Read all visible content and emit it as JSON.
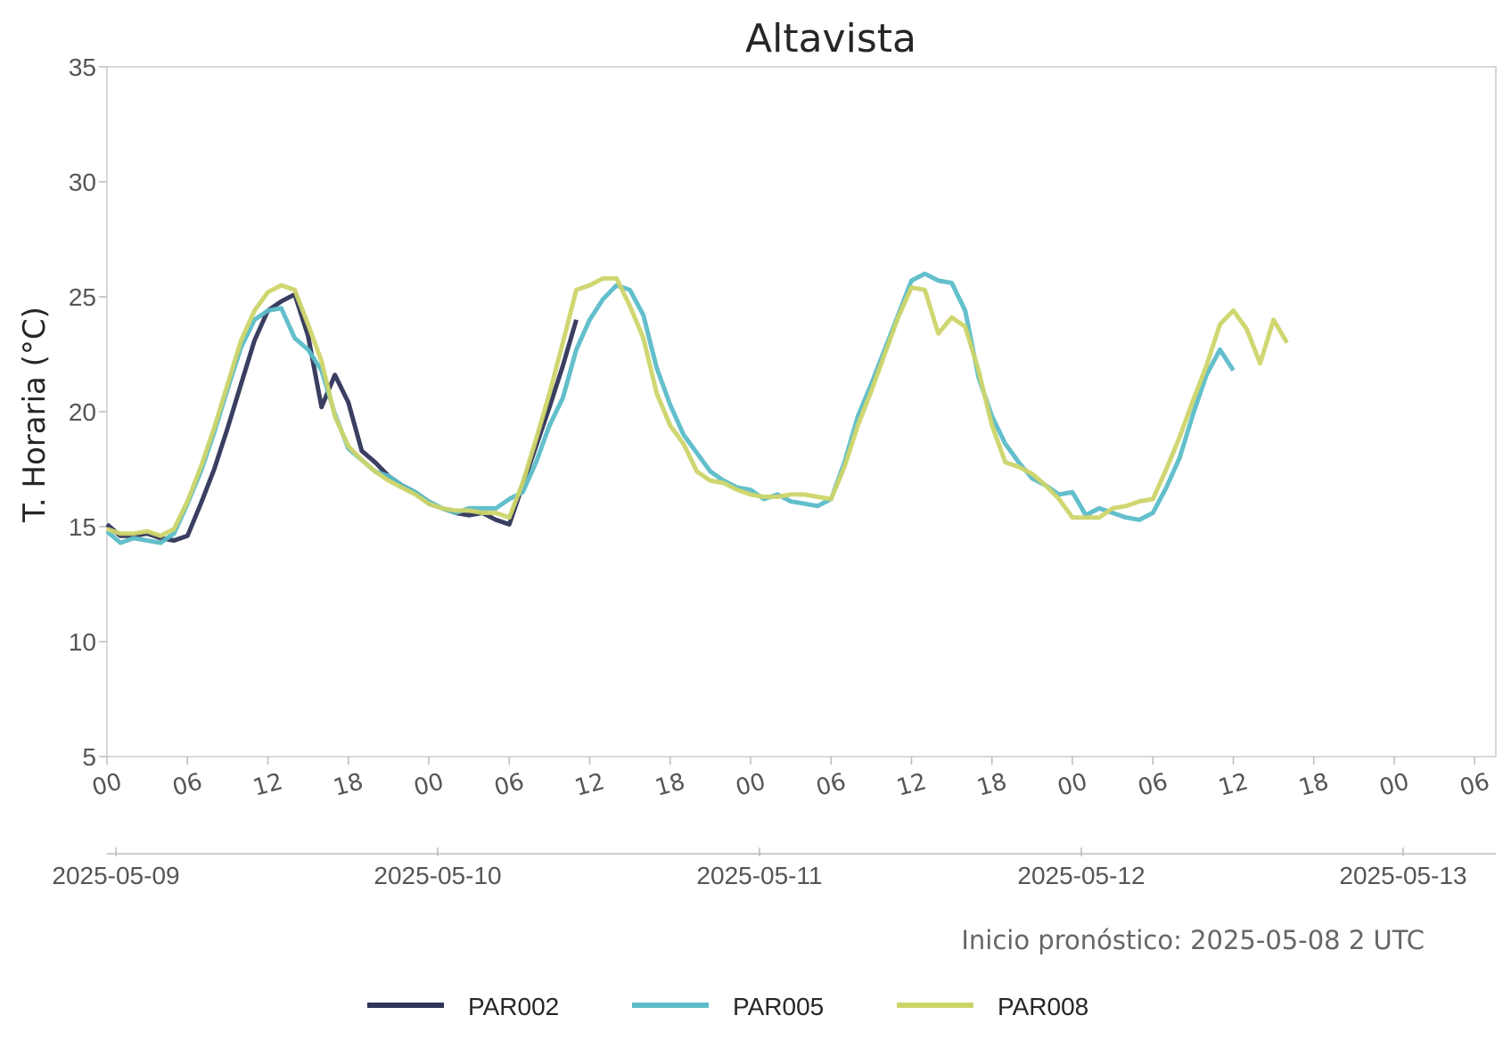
{
  "chart_data": {
    "type": "line",
    "title": "Altavista",
    "ylabel": "T. Horaria (°C)",
    "ylim": [
      5,
      35
    ],
    "yticks": [
      "5",
      "10",
      "15",
      "20",
      "25",
      "30",
      "35"
    ],
    "xlim": [
      "2025-05-09 00:00",
      "2025-05-13 06:00"
    ],
    "x_hour_ticks": [
      "00",
      "06",
      "12",
      "18",
      "00",
      "06",
      "12",
      "18",
      "00",
      "06",
      "12",
      "18",
      "00",
      "06",
      "12",
      "18",
      "00",
      "06"
    ],
    "x_date_ticks": [
      "2025-05-09",
      "2025-05-10",
      "2025-05-11",
      "2025-05-12",
      "2025-05-13"
    ],
    "grid": false,
    "legend_position": "bottom-center",
    "annotation": "Inicio pronóstico: 2025-05-08 2 UTC",
    "series": [
      {
        "name": "PAR002",
        "color": "#2f3558",
        "x": [
          "2025-05-09 00:00",
          "2025-05-09 01:00",
          "2025-05-09 02:00",
          "2025-05-09 03:00",
          "2025-05-09 04:00",
          "2025-05-09 05:00",
          "2025-05-09 06:00",
          "2025-05-09 07:00",
          "2025-05-09 08:00",
          "2025-05-09 09:00",
          "2025-05-09 10:00",
          "2025-05-09 11:00",
          "2025-05-09 12:00",
          "2025-05-09 13:00",
          "2025-05-09 14:00",
          "2025-05-09 15:00",
          "2025-05-09 16:00",
          "2025-05-09 17:00",
          "2025-05-09 18:00",
          "2025-05-09 19:00",
          "2025-05-09 20:00",
          "2025-05-09 21:00",
          "2025-05-09 22:00",
          "2025-05-09 23:00",
          "2025-05-10 00:00",
          "2025-05-10 01:00",
          "2025-05-10 02:00",
          "2025-05-10 03:00",
          "2025-05-10 04:00",
          "2025-05-10 05:00",
          "2025-05-10 06:00",
          "2025-05-10 07:00",
          "2025-05-10 08:00",
          "2025-05-10 09:00",
          "2025-05-10 10:00",
          "2025-05-10 11:00"
        ],
        "y": [
          15.1,
          14.6,
          14.6,
          14.7,
          14.5,
          14.4,
          14.6,
          16.0,
          17.5,
          19.3,
          21.2,
          23.1,
          24.4,
          24.8,
          25.1,
          23.3,
          20.2,
          21.6,
          20.4,
          18.3,
          17.8,
          17.2,
          16.8,
          16.5,
          16.0,
          15.8,
          15.6,
          15.5,
          15.6,
          15.3,
          15.1,
          16.8,
          18.5,
          20.2,
          22.0,
          24.0
        ]
      },
      {
        "name": "PAR005",
        "color": "#5bbcc8",
        "x": [
          "2025-05-09 00:00",
          "2025-05-09 01:00",
          "2025-05-09 02:00",
          "2025-05-09 03:00",
          "2025-05-09 04:00",
          "2025-05-09 05:00",
          "2025-05-09 06:00",
          "2025-05-09 07:00",
          "2025-05-09 08:00",
          "2025-05-09 09:00",
          "2025-05-09 10:00",
          "2025-05-09 11:00",
          "2025-05-09 12:00",
          "2025-05-09 13:00",
          "2025-05-09 14:00",
          "2025-05-09 15:00",
          "2025-05-09 16:00",
          "2025-05-09 17:00",
          "2025-05-09 18:00",
          "2025-05-09 19:00",
          "2025-05-09 20:00",
          "2025-05-09 21:00",
          "2025-05-09 22:00",
          "2025-05-09 23:00",
          "2025-05-10 00:00",
          "2025-05-10 01:00",
          "2025-05-10 02:00",
          "2025-05-10 03:00",
          "2025-05-10 04:00",
          "2025-05-10 05:00",
          "2025-05-10 06:00",
          "2025-05-10 07:00",
          "2025-05-10 08:00",
          "2025-05-10 09:00",
          "2025-05-10 10:00",
          "2025-05-10 11:00",
          "2025-05-10 12:00",
          "2025-05-10 13:00",
          "2025-05-10 14:00",
          "2025-05-10 15:00",
          "2025-05-10 16:00",
          "2025-05-10 17:00",
          "2025-05-10 18:00",
          "2025-05-10 19:00",
          "2025-05-10 20:00",
          "2025-05-10 21:00",
          "2025-05-10 22:00",
          "2025-05-10 23:00",
          "2025-05-11 00:00",
          "2025-05-11 01:00",
          "2025-05-11 02:00",
          "2025-05-11 03:00",
          "2025-05-11 04:00",
          "2025-05-11 05:00",
          "2025-05-11 06:00",
          "2025-05-11 07:00",
          "2025-05-11 08:00",
          "2025-05-11 09:00",
          "2025-05-11 10:00",
          "2025-05-11 11:00",
          "2025-05-11 12:00",
          "2025-05-11 13:00",
          "2025-05-11 14:00",
          "2025-05-11 15:00",
          "2025-05-11 16:00",
          "2025-05-11 17:00",
          "2025-05-11 18:00",
          "2025-05-11 19:00",
          "2025-05-11 20:00",
          "2025-05-11 21:00",
          "2025-05-11 22:00",
          "2025-05-11 23:00",
          "2025-05-12 00:00",
          "2025-05-12 01:00",
          "2025-05-12 02:00",
          "2025-05-12 03:00",
          "2025-05-12 04:00",
          "2025-05-12 05:00",
          "2025-05-12 06:00",
          "2025-05-12 07:00",
          "2025-05-12 08:00",
          "2025-05-12 09:00",
          "2025-05-12 10:00",
          "2025-05-12 11:00",
          "2025-05-12 12:00"
        ],
        "y": [
          14.8,
          14.3,
          14.5,
          14.4,
          14.3,
          14.7,
          16.0,
          17.4,
          19.1,
          21.0,
          22.8,
          24.0,
          24.4,
          24.5,
          23.2,
          22.7,
          21.8,
          19.9,
          18.4,
          17.9,
          17.4,
          17.2,
          16.8,
          16.5,
          16.1,
          15.8,
          15.6,
          15.8,
          15.8,
          15.8,
          16.2,
          16.5,
          17.8,
          19.4,
          20.6,
          22.7,
          24.0,
          24.9,
          25.5,
          25.3,
          24.2,
          21.9,
          20.3,
          19.0,
          18.2,
          17.4,
          17.0,
          16.7,
          16.6,
          16.2,
          16.4,
          16.1,
          16.0,
          15.9,
          16.2,
          17.8,
          19.8,
          21.2,
          22.7,
          24.2,
          25.7,
          26.0,
          25.7,
          25.6,
          24.4,
          21.5,
          19.8,
          18.6,
          17.8,
          17.1,
          16.8,
          16.4,
          16.5,
          15.5,
          15.8,
          15.6,
          15.4,
          15.3,
          15.6,
          16.7,
          18.0,
          19.9,
          21.6,
          22.7,
          21.8
        ]
      },
      {
        "name": "PAR008",
        "color": "#cdd56a",
        "x": [
          "2025-05-09 00:00",
          "2025-05-09 01:00",
          "2025-05-09 02:00",
          "2025-05-09 03:00",
          "2025-05-09 04:00",
          "2025-05-09 05:00",
          "2025-05-09 06:00",
          "2025-05-09 07:00",
          "2025-05-09 08:00",
          "2025-05-09 09:00",
          "2025-05-09 10:00",
          "2025-05-09 11:00",
          "2025-05-09 12:00",
          "2025-05-09 13:00",
          "2025-05-09 14:00",
          "2025-05-09 15:00",
          "2025-05-09 16:00",
          "2025-05-09 17:00",
          "2025-05-09 18:00",
          "2025-05-09 19:00",
          "2025-05-09 20:00",
          "2025-05-09 21:00",
          "2025-05-09 22:00",
          "2025-05-09 23:00",
          "2025-05-10 00:00",
          "2025-05-10 01:00",
          "2025-05-10 02:00",
          "2025-05-10 03:00",
          "2025-05-10 04:00",
          "2025-05-10 05:00",
          "2025-05-10 06:00",
          "2025-05-10 07:00",
          "2025-05-10 08:00",
          "2025-05-10 09:00",
          "2025-05-10 10:00",
          "2025-05-10 11:00",
          "2025-05-10 12:00",
          "2025-05-10 13:00",
          "2025-05-10 14:00",
          "2025-05-10 15:00",
          "2025-05-10 16:00",
          "2025-05-10 17:00",
          "2025-05-10 18:00",
          "2025-05-10 19:00",
          "2025-05-10 20:00",
          "2025-05-10 21:00",
          "2025-05-10 22:00",
          "2025-05-10 23:00",
          "2025-05-11 00:00",
          "2025-05-11 01:00",
          "2025-05-11 02:00",
          "2025-05-11 03:00",
          "2025-05-11 04:00",
          "2025-05-11 05:00",
          "2025-05-11 06:00",
          "2025-05-11 07:00",
          "2025-05-11 08:00",
          "2025-05-11 09:00",
          "2025-05-11 10:00",
          "2025-05-11 11:00",
          "2025-05-11 12:00",
          "2025-05-11 13:00",
          "2025-05-11 14:00",
          "2025-05-11 15:00",
          "2025-05-11 16:00",
          "2025-05-11 17:00",
          "2025-05-11 18:00",
          "2025-05-11 19:00",
          "2025-05-11 20:00",
          "2025-05-11 21:00",
          "2025-05-11 22:00",
          "2025-05-11 23:00",
          "2025-05-12 00:00",
          "2025-05-12 01:00",
          "2025-05-12 02:00",
          "2025-05-12 03:00",
          "2025-05-12 04:00",
          "2025-05-12 05:00",
          "2025-05-12 06:00",
          "2025-05-12 07:00",
          "2025-05-12 08:00",
          "2025-05-12 09:00",
          "2025-05-12 10:00",
          "2025-05-12 11:00",
          "2025-05-12 12:00",
          "2025-05-12 13:00",
          "2025-05-12 14:00",
          "2025-05-12 15:00",
          "2025-05-12 16:00"
        ],
        "y": [
          14.9,
          14.7,
          14.7,
          14.8,
          14.6,
          14.9,
          16.1,
          17.6,
          19.3,
          21.2,
          23.1,
          24.4,
          25.2,
          25.5,
          25.3,
          23.8,
          22.2,
          19.8,
          18.5,
          17.9,
          17.4,
          17.0,
          16.7,
          16.4,
          16.0,
          15.8,
          15.7,
          15.7,
          15.6,
          15.6,
          15.4,
          16.9,
          18.8,
          20.8,
          23.0,
          25.3,
          25.5,
          25.8,
          25.8,
          24.6,
          23.2,
          20.8,
          19.4,
          18.6,
          17.4,
          17.0,
          16.9,
          16.6,
          16.4,
          16.3,
          16.3,
          16.4,
          16.4,
          16.3,
          16.2,
          17.6,
          19.4,
          20.9,
          22.5,
          24.1,
          25.4,
          25.3,
          23.4,
          24.1,
          23.7,
          21.8,
          19.4,
          17.8,
          17.6,
          17.3,
          16.8,
          16.2,
          15.4,
          15.4,
          15.4,
          15.8,
          15.9,
          16.1,
          16.2,
          17.5,
          18.9,
          20.5,
          22.0,
          23.8,
          24.4,
          23.6,
          22.1,
          24.0,
          23.0
        ]
      }
    ]
  }
}
